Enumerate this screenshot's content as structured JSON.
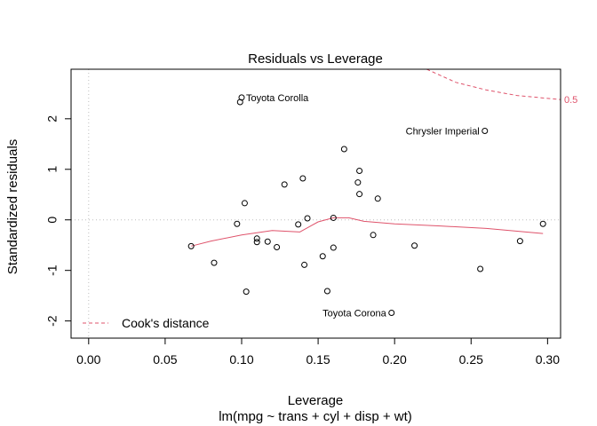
{
  "chart_data": {
    "type": "scatter",
    "title": "Residuals vs Leverage",
    "xlabel": "Leverage",
    "subtitle": "lm(mpg ~ trans + cyl + disp + wt)",
    "ylabel": "Standardized residuals",
    "xlim": [
      -0.0115,
      0.3085
    ],
    "ylim": [
      -2.34,
      2.98
    ],
    "x_ticks": [
      0.0,
      0.05,
      0.1,
      0.15,
      0.2,
      0.25,
      0.3
    ],
    "x_tick_labels": [
      "0.00",
      "0.05",
      "0.10",
      "0.15",
      "0.20",
      "0.25",
      "0.30"
    ],
    "y_ticks": [
      -2,
      -1,
      0,
      1,
      2
    ],
    "y_tick_labels": [
      "-2",
      "-1",
      "0",
      "1",
      "2"
    ],
    "points": [
      {
        "x": 0.067,
        "y": -0.52
      },
      {
        "x": 0.082,
        "y": -0.85
      },
      {
        "x": 0.097,
        "y": -0.08
      },
      {
        "x": 0.099,
        "y": 2.33
      },
      {
        "x": 0.1,
        "y": 2.42
      },
      {
        "x": 0.102,
        "y": 0.33
      },
      {
        "x": 0.103,
        "y": -1.42
      },
      {
        "x": 0.11,
        "y": -0.37
      },
      {
        "x": 0.11,
        "y": -0.44
      },
      {
        "x": 0.117,
        "y": -0.43
      },
      {
        "x": 0.123,
        "y": -0.54
      },
      {
        "x": 0.128,
        "y": 0.7
      },
      {
        "x": 0.137,
        "y": -0.09
      },
      {
        "x": 0.14,
        "y": 0.82
      },
      {
        "x": 0.141,
        "y": -0.89
      },
      {
        "x": 0.143,
        "y": 0.03
      },
      {
        "x": 0.153,
        "y": -0.72
      },
      {
        "x": 0.156,
        "y": -1.41
      },
      {
        "x": 0.16,
        "y": 0.04
      },
      {
        "x": 0.16,
        "y": -0.55
      },
      {
        "x": 0.167,
        "y": 1.4
      },
      {
        "x": 0.176,
        "y": 0.74
      },
      {
        "x": 0.177,
        "y": 0.97
      },
      {
        "x": 0.177,
        "y": 0.51
      },
      {
        "x": 0.186,
        "y": -0.3
      },
      {
        "x": 0.189,
        "y": 0.42
      },
      {
        "x": 0.198,
        "y": -1.84
      },
      {
        "x": 0.213,
        "y": -0.51
      },
      {
        "x": 0.256,
        "y": -0.97
      },
      {
        "x": 0.259,
        "y": 1.76
      },
      {
        "x": 0.282,
        "y": -0.42
      },
      {
        "x": 0.297,
        "y": -0.08
      }
    ],
    "labeled_points": [
      {
        "label": "Toyota Corolla",
        "x": 0.1,
        "y": 2.42,
        "side": "right"
      },
      {
        "label": "Chrysler Imperial",
        "x": 0.259,
        "y": 1.76,
        "side": "left"
      },
      {
        "label": "Toyota Corona",
        "x": 0.198,
        "y": -1.84,
        "side": "left"
      }
    ],
    "smoother": {
      "name": "smoother",
      "color": "#DF536B",
      "x": [
        0.067,
        0.08,
        0.1,
        0.12,
        0.138,
        0.15,
        0.16,
        0.17,
        0.18,
        0.2,
        0.23,
        0.26,
        0.297
      ],
      "y": [
        -0.52,
        -0.42,
        -0.3,
        -0.21,
        -0.24,
        -0.04,
        0.04,
        0.04,
        -0.03,
        -0.08,
        -0.12,
        -0.17,
        -0.27
      ]
    },
    "cooks_distance": {
      "legend_label": "Cook's distance",
      "color": "#DF536B",
      "contour_label": "0.5",
      "x": [
        0.221,
        0.24,
        0.26,
        0.28,
        0.3085
      ],
      "y": [
        2.98,
        2.72,
        2.57,
        2.46,
        2.38
      ]
    },
    "reference_lines": {
      "h": 0,
      "v": 0,
      "color": "#BEBEBE",
      "style": "dotted"
    },
    "legend_position": "bottom-left",
    "grid": false
  }
}
